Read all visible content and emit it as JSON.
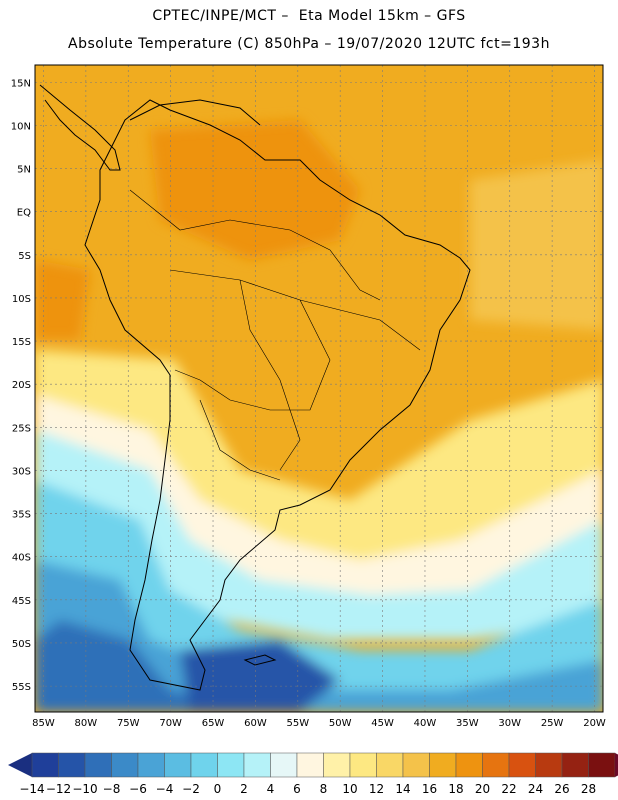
{
  "header": {
    "line1": "CPTEC/INPE/MCT –  Eta Model 15km – GFS",
    "line2": "Absolute Temperature (C) 850hPa – 19/07/2020 12UTC fct=193h"
  },
  "axes": {
    "lat_labels": [
      "15N",
      "10N",
      "5N",
      "EQ",
      "5S",
      "10S",
      "15S",
      "20S",
      "25S",
      "30S",
      "35S",
      "40S",
      "45S",
      "50S",
      "55S"
    ],
    "lat_values": [
      15,
      10,
      5,
      0,
      -5,
      -10,
      -15,
      -20,
      -25,
      -30,
      -35,
      -40,
      -45,
      -50,
      -55
    ],
    "lon_labels": [
      "85W",
      "80W",
      "75W",
      "70W",
      "65W",
      "60W",
      "55W",
      "50W",
      "45W",
      "40W",
      "35W",
      "30W",
      "25W",
      "20W"
    ],
    "lon_values": [
      -85,
      -80,
      -75,
      -70,
      -65,
      -60,
      -55,
      -50,
      -45,
      -40,
      -35,
      -30,
      -25,
      -20
    ],
    "lat_range": [
      -58,
      17
    ],
    "lon_range": [
      -86,
      -19
    ]
  },
  "colorbar": {
    "labels": [
      "-14",
      "-12",
      "-10",
      "-8",
      "-6",
      "-4",
      "-2",
      "0",
      "2",
      "4",
      "6",
      "8",
      "10",
      "12",
      "14",
      "16",
      "18",
      "20",
      "22",
      "24",
      "26",
      "28"
    ],
    "colors": [
      "#1f3f9a",
      "#2554a8",
      "#2f6fb8",
      "#3b8ac8",
      "#4aa3d6",
      "#5bbde2",
      "#6fd3ec",
      "#8de6f4",
      "#b5f2f8",
      "#e6f7f7",
      "#fff6e0",
      "#fff1a8",
      "#fde882",
      "#f9d766",
      "#f4c24a",
      "#f0ac20",
      "#ee9310",
      "#e67410",
      "#d85210",
      "#b83a10",
      "#952212",
      "#7a1010"
    ],
    "low_extend_color": "#1a2f80",
    "high_extend_color": "#6a0a28"
  },
  "map_colors": {
    "ocean_tropics": "#f4c24a",
    "warm": "#f0ac20",
    "warmer": "#ee9310",
    "hot": "#e67410",
    "mild": "#fde882",
    "cool": "#fff6e0",
    "cold1": "#b5f2f8",
    "cold2": "#6fd3ec",
    "cold3": "#4aa3d6",
    "cold4": "#2f6fb8",
    "cold5": "#2554a8",
    "coast": "#000000",
    "grid": "#7a7a7a"
  }
}
